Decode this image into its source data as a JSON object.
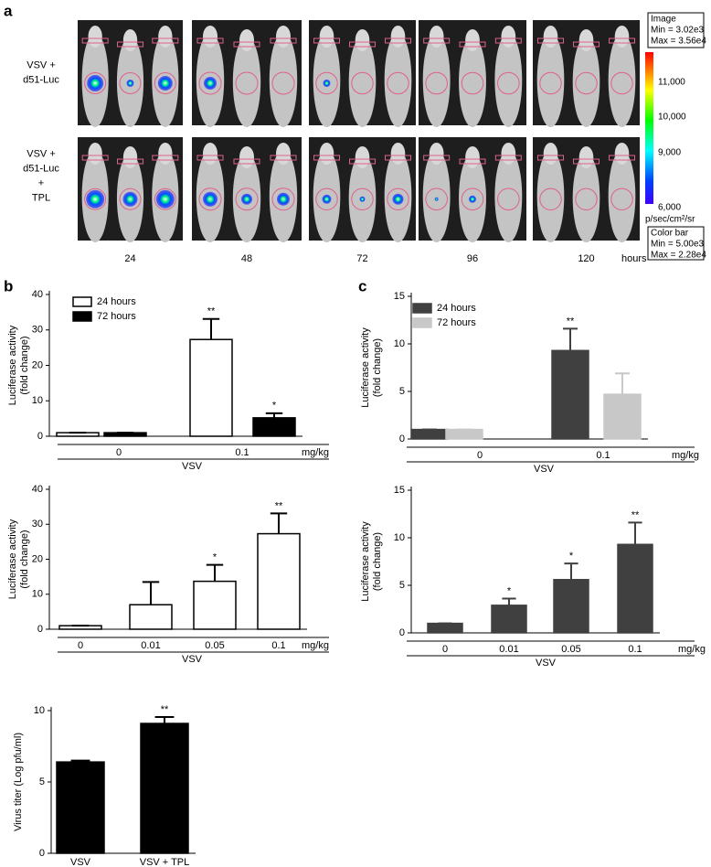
{
  "panel_labels": [
    "a",
    "b",
    "c"
  ],
  "imaging": {
    "row_labels": [
      [
        "VSV +",
        "d51-Luc"
      ],
      [
        "VSV +",
        "d51-Luc",
        "+",
        "TPL"
      ]
    ],
    "time_labels": [
      "24",
      "48",
      "72",
      "96",
      "120"
    ],
    "time_unit": "hours",
    "image_box": [
      "Image",
      "Min = 3.02e3",
      "Max = 3.56e4"
    ],
    "colorbar_labels": [
      "11,000",
      "10,000",
      "9,000",
      "6,000"
    ],
    "colorbar_unit": "p/sec/cm²/sr",
    "colorbar_box": [
      "Color bar",
      "Min = 5.00e3",
      "Max = 2.28e4"
    ]
  },
  "chart_data": [
    {
      "type": "bar",
      "ylabel": [
        "Luciferase activity",
        "(fold change)"
      ],
      "categories": [
        "0",
        "0.1"
      ],
      "xunit": "mg/kg",
      "group_label": "VSV",
      "series": [
        {
          "name": "24 hours",
          "color": "#ffffff",
          "edgecolor": "#000000",
          "values": [
            1,
            27.3
          ],
          "errors": [
            0,
            5.8
          ],
          "significance": [
            null,
            "**"
          ]
        },
        {
          "name": "72 hours",
          "color": "#000000",
          "edgecolor": "#000000",
          "values": [
            1,
            5.2
          ],
          "errors": [
            0,
            1.3
          ],
          "significance": [
            null,
            "*"
          ]
        }
      ],
      "ylim": [
        0,
        40
      ],
      "yticks": [
        0,
        10,
        20,
        30,
        40
      ],
      "legend": "upper left"
    },
    {
      "type": "bar",
      "ylabel": [
        "Luciferase activity",
        "(fold change)"
      ],
      "categories": [
        "0",
        "0.01",
        "0.05",
        "0.1"
      ],
      "xunit": "mg/kg",
      "group_label": "VSV",
      "series": [
        {
          "color": "#ffffff",
          "edgecolor": "#000000",
          "values": [
            1,
            7,
            13.7,
            27.3
          ],
          "errors": [
            0,
            6.5,
            4.7,
            5.8
          ],
          "significance": [
            null,
            null,
            "*",
            "**"
          ]
        }
      ],
      "ylim": [
        0,
        40
      ],
      "yticks": [
        0,
        10,
        20,
        30,
        40
      ]
    },
    {
      "type": "bar",
      "ylabel": [
        "Virus titer (Log pfu/ml)"
      ],
      "categories": [
        "VSV",
        "VSV + TPL"
      ],
      "series": [
        {
          "color": "#000000",
          "edgecolor": "#000000",
          "values": [
            6.4,
            9.1
          ],
          "errors": [
            0.1,
            0.45
          ],
          "significance": [
            null,
            "**"
          ]
        }
      ],
      "ylim": [
        0,
        10
      ],
      "yticks": [
        0,
        5,
        10
      ]
    },
    {
      "type": "bar",
      "ylabel": [
        "Luciferase activity",
        "(fold change)"
      ],
      "categories": [
        "0",
        "0.1"
      ],
      "xunit": "mg/kg",
      "group_label": "VSV",
      "series": [
        {
          "name": "24 hours",
          "color": "#404040",
          "edgecolor": "#404040",
          "values": [
            1,
            9.3
          ],
          "errors": [
            0,
            2.3
          ],
          "significance": [
            null,
            "**"
          ]
        },
        {
          "name": "72 hours",
          "color": "#c8c8c8",
          "edgecolor": "#c8c8c8",
          "values": [
            1,
            4.7
          ],
          "errors": [
            0,
            2.2
          ]
        }
      ],
      "ylim": [
        0,
        15
      ],
      "yticks": [
        0,
        5,
        10,
        15
      ],
      "legend": "upper left"
    },
    {
      "type": "bar",
      "ylabel": [
        "Luciferase activity",
        "(fold change)"
      ],
      "categories": [
        "0",
        "0.01",
        "0.05",
        "0.1"
      ],
      "xunit": "mg/kg",
      "group_label": "VSV",
      "series": [
        {
          "color": "#404040",
          "edgecolor": "#404040",
          "values": [
            1,
            2.9,
            5.6,
            9.3
          ],
          "errors": [
            0,
            0.7,
            1.7,
            2.3
          ],
          "significance": [
            null,
            "*",
            "*",
            "**"
          ]
        }
      ],
      "ylim": [
        0,
        15
      ],
      "yticks": [
        0,
        5,
        10,
        15
      ]
    }
  ]
}
